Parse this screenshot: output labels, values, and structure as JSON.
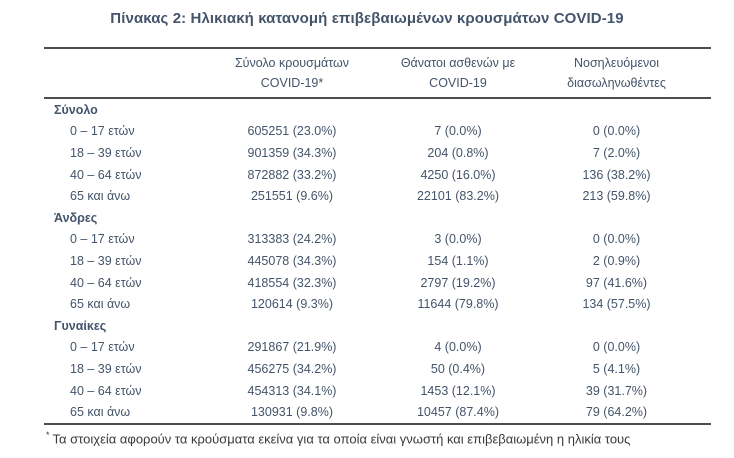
{
  "title": "Πίνακας 2: Ηλικιακή κατανομή επιβεβαιωμένων κρουσμάτων COVID-19",
  "colors": {
    "text": "#44546a",
    "rule": "#4d4d4d",
    "footnote_text": "#3a3a3a",
    "background": "#ffffff"
  },
  "table": {
    "columns": [
      {
        "line1": "Σύνολο κρουσμάτων",
        "line2": "COVID-19*"
      },
      {
        "line1": "Θάνατοι ασθενών με",
        "line2": "COVID-19"
      },
      {
        "line1": "Νοσηλευόμενοι",
        "line2": "διασωληνωθέντες"
      }
    ],
    "sections": [
      {
        "label": "Σύνολο",
        "rows": [
          {
            "age": "0 – 17 ετών",
            "cases": "605251 (23.0%)",
            "deaths": "7 (0.0%)",
            "intubated": "0 (0.0%)"
          },
          {
            "age": "18 – 39 ετών",
            "cases": "901359 (34.3%)",
            "deaths": "204 (0.8%)",
            "intubated": "7 (2.0%)"
          },
          {
            "age": "40 – 64 ετών",
            "cases": "872882 (33.2%)",
            "deaths": "4250 (16.0%)",
            "intubated": "136 (38.2%)"
          },
          {
            "age": "65 και άνω",
            "cases": "251551 (9.6%)",
            "deaths": "22101 (83.2%)",
            "intubated": "213 (59.8%)"
          }
        ]
      },
      {
        "label": "Άνδρες",
        "rows": [
          {
            "age": "0 – 17 ετών",
            "cases": "313383 (24.2%)",
            "deaths": "3 (0.0%)",
            "intubated": "0 (0.0%)"
          },
          {
            "age": "18 – 39 ετών",
            "cases": "445078 (34.3%)",
            "deaths": "154 (1.1%)",
            "intubated": "2 (0.9%)"
          },
          {
            "age": "40 – 64 ετών",
            "cases": "418554 (32.3%)",
            "deaths": "2797 (19.2%)",
            "intubated": "97 (41.6%)"
          },
          {
            "age": "65 και άνω",
            "cases": "120614 (9.3%)",
            "deaths": "11644 (79.8%)",
            "intubated": "134 (57.5%)"
          }
        ]
      },
      {
        "label": "Γυναίκες",
        "rows": [
          {
            "age": "0 – 17 ετών",
            "cases": "291867 (21.9%)",
            "deaths": "4 (0.0%)",
            "intubated": "0 (0.0%)"
          },
          {
            "age": "18 – 39 ετών",
            "cases": "456275 (34.2%)",
            "deaths": "50 (0.4%)",
            "intubated": "5 (4.1%)"
          },
          {
            "age": "40 – 64 ετών",
            "cases": "454313 (34.1%)",
            "deaths": "1453 (12.1%)",
            "intubated": "39 (31.7%)"
          },
          {
            "age": "65 και άνω",
            "cases": "130931 (9.8%)",
            "deaths": "10457 (87.4%)",
            "intubated": "79 (64.2%)"
          }
        ]
      }
    ]
  },
  "footnote": {
    "marker": "*",
    "text": "Τα στοιχεία αφορούν τα κρούσματα εκείνα για τα οποία είναι γνωστή και επιβεβαιωμένη η ηλικία τους"
  }
}
